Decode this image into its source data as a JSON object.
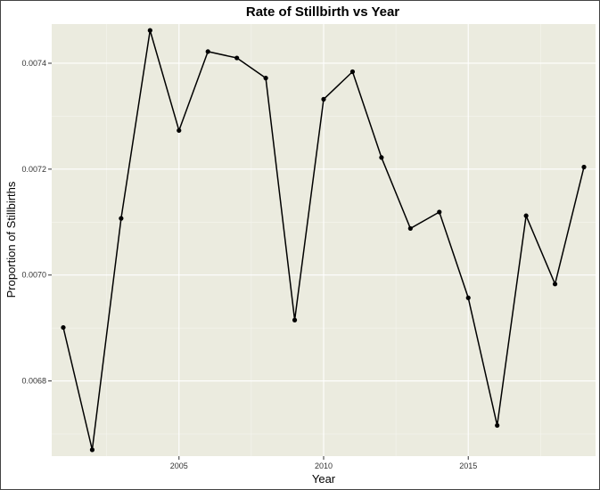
{
  "chart_data": {
    "type": "line",
    "title": "Rate of Stillbirth vs Year",
    "xlabel": "Year",
    "ylabel": "Proportion of Stillbirths",
    "x": [
      2001,
      2002,
      2003,
      2004,
      2005,
      2006,
      2007,
      2008,
      2009,
      2010,
      2011,
      2012,
      2013,
      2014,
      2015,
      2016,
      2017,
      2018,
      2019
    ],
    "series": [
      {
        "values": [
          0.006901,
          0.00667,
          0.007107,
          0.007462,
          0.007273,
          0.007422,
          0.00741,
          0.007372,
          0.006915,
          0.007332,
          0.007384,
          0.007222,
          0.007088,
          0.007119,
          0.006957,
          0.006716,
          0.007112,
          0.006983,
          0.007204
        ]
      }
    ],
    "xlim": [
      2000.6,
      2019.4
    ],
    "ylim": [
      0.006658,
      0.007474
    ],
    "x_ticks": [
      2005,
      2010,
      2015
    ],
    "x_tick_labels": [
      "2005",
      "2010",
      "2015"
    ],
    "y_ticks": [
      0.0068,
      0.007,
      0.0072,
      0.0074
    ],
    "y_tick_labels": [
      "0.0068",
      "0.0070",
      "0.0072",
      "0.0074"
    ],
    "grid": true,
    "legend": "none",
    "colors": {
      "panel_background": "#ebebdf",
      "grid_major": "#ffffff",
      "grid_minor": "#f5f5ef",
      "line": "#000000",
      "point": "#000000"
    }
  }
}
